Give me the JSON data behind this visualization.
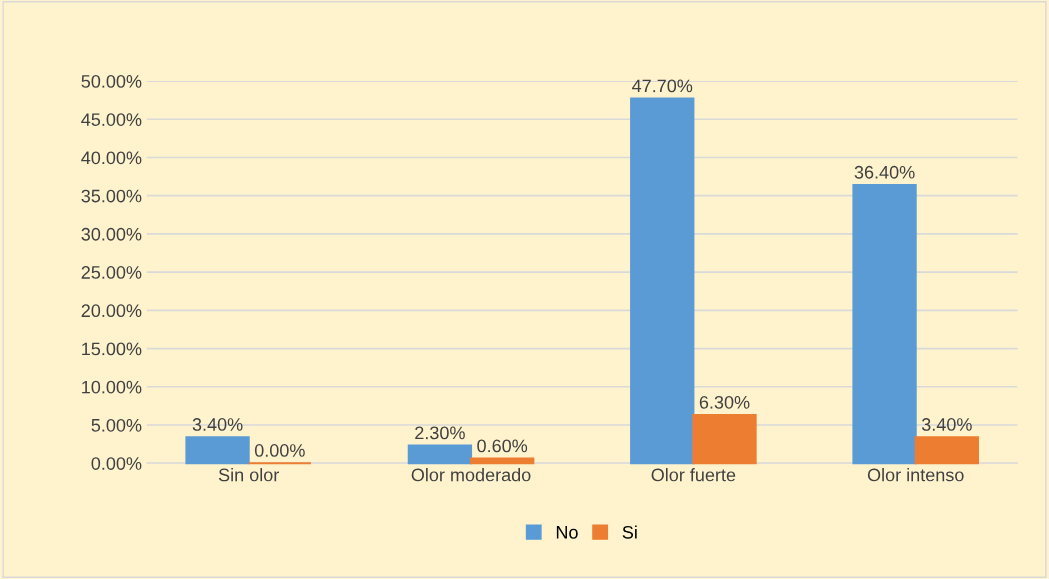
{
  "chart_data": {
    "type": "bar",
    "categories": [
      "Sin olor",
      "Olor moderado",
      "Olor fuerte",
      "Olor intenso"
    ],
    "series": [
      {
        "name": "No",
        "color": "#5b9bd5",
        "values": [
          3.4,
          2.3,
          47.7,
          36.4
        ],
        "value_labels": [
          "3.40%",
          "2.30%",
          "47.70%",
          "36.40%"
        ]
      },
      {
        "name": "Si",
        "color": "#ed7d31",
        "values": [
          0.0,
          0.6,
          6.3,
          3.4
        ],
        "value_labels": [
          "0.00%",
          "0.60%",
          "6.30%",
          "3.40%"
        ]
      }
    ],
    "ylim": [
      0,
      50
    ],
    "yticks": [
      {
        "value": 0,
        "label": "0.00%"
      },
      {
        "value": 5,
        "label": "5.00%"
      },
      {
        "value": 10,
        "label": "10.00%"
      },
      {
        "value": 15,
        "label": "15.00%"
      },
      {
        "value": 20,
        "label": "20.00%"
      },
      {
        "value": 25,
        "label": "25.00%"
      },
      {
        "value": 30,
        "label": "30.00%"
      },
      {
        "value": 35,
        "label": "35.00%"
      },
      {
        "value": 40,
        "label": "40.00%"
      },
      {
        "value": 45,
        "label": "45.00%"
      },
      {
        "value": 50,
        "label": "50.00%"
      }
    ],
    "grid": "y",
    "legend": "bottom"
  }
}
